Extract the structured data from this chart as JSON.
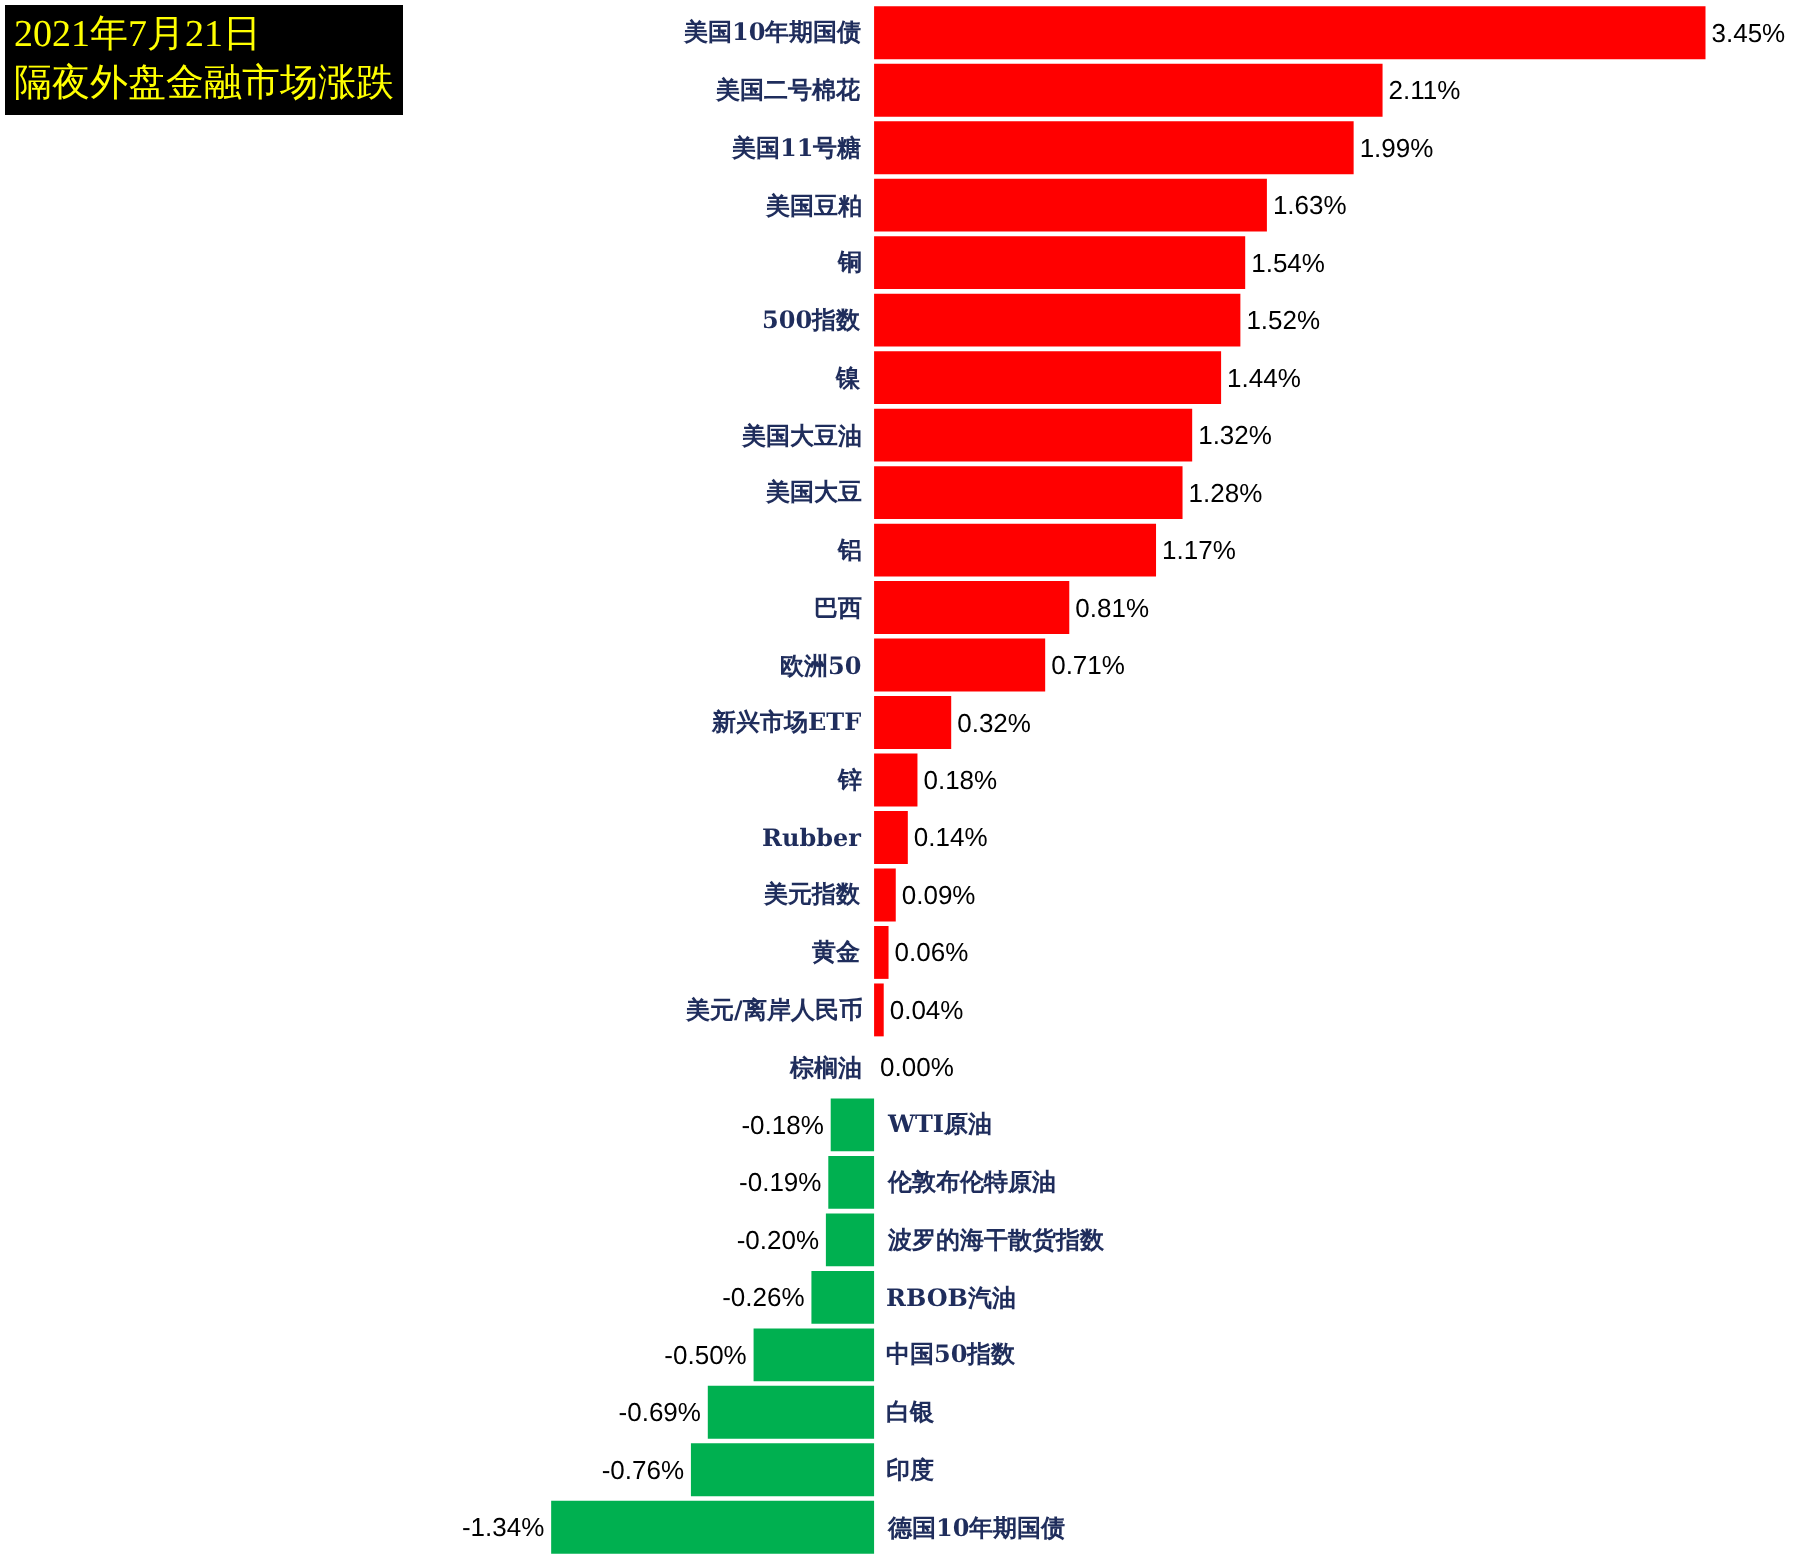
{
  "chart_data": {
    "type": "bar",
    "orientation": "horizontal",
    "title": "2021年7月21日",
    "subtitle": "隔夜外盘金融市场涨跌",
    "categories": [
      "美国10年期国债",
      "美国二号棉花",
      "美国11号糖",
      "美国豆粕",
      "铜",
      "500指数",
      "镍",
      "美国大豆油",
      "美国大豆",
      "铝",
      "巴西",
      "欧洲50",
      "新兴市场ETF",
      "锌",
      "Rubber",
      "美元指数",
      "黄金",
      "美元/离岸人民币",
      "棕榈油",
      "WTI原油",
      "伦敦布伦特原油",
      "波罗的海干散货指数",
      "RBOB汽油",
      "中国50指数",
      "白银",
      "印度",
      "德国10年期国债"
    ],
    "values": [
      3.45,
      2.11,
      1.99,
      1.63,
      1.54,
      1.52,
      1.44,
      1.32,
      1.28,
      1.17,
      0.81,
      0.71,
      0.32,
      0.18,
      0.14,
      0.09,
      0.06,
      0.04,
      0.0,
      -0.18,
      -0.19,
      -0.2,
      -0.26,
      -0.5,
      -0.69,
      -0.76,
      -1.34
    ],
    "value_labels": [
      "3.45%",
      "2.11%",
      "1.99%",
      "1.63%",
      "1.54%",
      "1.52%",
      "1.44%",
      "1.32%",
      "1.28%",
      "1.17%",
      "0.81%",
      "0.71%",
      "0.32%",
      "0.18%",
      "0.14%",
      "0.09%",
      "0.06%",
      "0.04%",
      "0.00%",
      "-0.18%",
      "-0.19%",
      "-0.20%",
      "-0.26%",
      "-0.50%",
      "-0.69%",
      "-0.76%",
      "-1.34%"
    ],
    "colors": [
      "#ff0000",
      "#ff0000",
      "#ff0000",
      "#ff0000",
      "#ff0000",
      "#ff0000",
      "#ff0000",
      "#ff0000",
      "#ff0000",
      "#ff0000",
      "#ff0000",
      "#ff0000",
      "#ff0000",
      "#ff0000",
      "#ff0000",
      "#ff0000",
      "#ff0000",
      "#ff0000",
      "#ff0000",
      "#00b050",
      "#00b050",
      "#00b050",
      "#00b050",
      "#00b050",
      "#00b050",
      "#00b050",
      "#00b050"
    ]
  }
}
